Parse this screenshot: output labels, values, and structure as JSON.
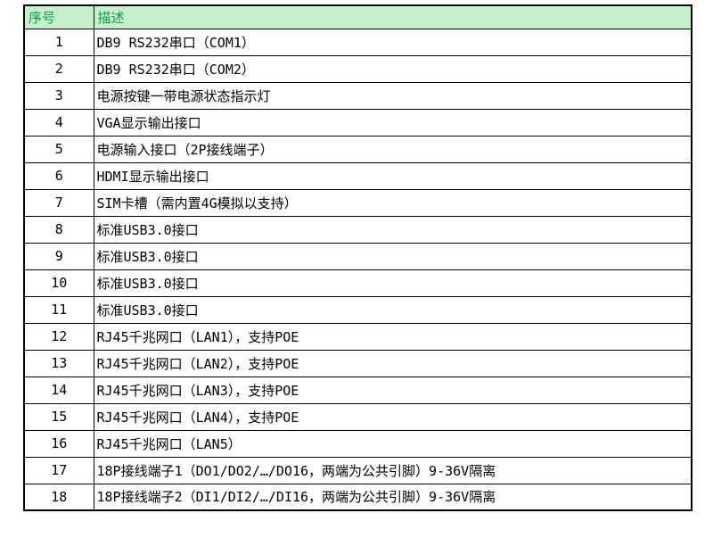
{
  "colors": {
    "header_bg": "#c6efce",
    "header_text": "#0f9d4a",
    "border": "#000000",
    "cell_text": "#000000",
    "page_bg": "#ffffff"
  },
  "table": {
    "headers": [
      {
        "label": "序号"
      },
      {
        "label": "描述"
      }
    ],
    "rows": [
      {
        "no": "1",
        "desc": "DB9 RS232串口（COM1）"
      },
      {
        "no": "2",
        "desc": "DB9 RS232串口（COM2）"
      },
      {
        "no": "3",
        "desc": "电源按键一带电源状态指示灯"
      },
      {
        "no": "4",
        "desc": "VGA显示输出接口"
      },
      {
        "no": "5",
        "desc": "电源输入接口（2P接线端子）"
      },
      {
        "no": "6",
        "desc": "HDMI显示输出接口"
      },
      {
        "no": "7",
        "desc": "SIM卡槽（需内置4G模拟以支持）"
      },
      {
        "no": "8",
        "desc": "标准USB3.0接口"
      },
      {
        "no": "9",
        "desc": "标准USB3.0接口"
      },
      {
        "no": "10",
        "desc": "标准USB3.0接口"
      },
      {
        "no": "11",
        "desc": "标准USB3.0接口"
      },
      {
        "no": "12",
        "desc": "RJ45千兆网口（LAN1），支持POE"
      },
      {
        "no": "13",
        "desc": "RJ45千兆网口（LAN2），支持POE"
      },
      {
        "no": "14",
        "desc": "RJ45千兆网口（LAN3），支持POE"
      },
      {
        "no": "15",
        "desc": "RJ45千兆网口（LAN4），支持POE"
      },
      {
        "no": "16",
        "desc": "RJ45千兆网口（LAN5）"
      },
      {
        "no": "17",
        "desc": "18P接线端子1（DO1/DO2/…/DO16，两端为公共引脚）9-36V隔离"
      },
      {
        "no": "18",
        "desc": "18P接线端子2（DI1/DI2/…/DI16，两端为公共引脚）9-36V隔离"
      }
    ]
  }
}
